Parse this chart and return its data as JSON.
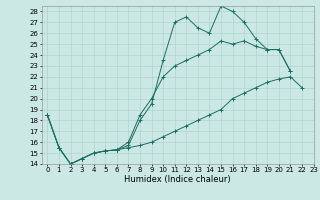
{
  "xlabel": "Humidex (Indice chaleur)",
  "bg_color": "#cce8e4",
  "line_color": "#1a6e64",
  "grid_color": "#b0d4ce",
  "xlim": [
    -0.5,
    23
  ],
  "ylim": [
    14,
    28.5
  ],
  "yticks": [
    14,
    15,
    16,
    17,
    18,
    19,
    20,
    21,
    22,
    23,
    24,
    25,
    26,
    27,
    28
  ],
  "xticks": [
    0,
    1,
    2,
    3,
    4,
    5,
    6,
    7,
    8,
    9,
    10,
    11,
    12,
    13,
    14,
    15,
    16,
    17,
    18,
    19,
    20,
    21,
    22,
    23
  ],
  "line1_x": [
    0,
    1,
    2,
    3,
    4,
    5,
    6,
    7,
    8,
    9,
    10,
    11,
    12,
    13,
    14,
    15,
    16,
    17,
    18,
    19,
    20,
    21
  ],
  "line1_y": [
    18.5,
    15.5,
    14.0,
    14.5,
    15.0,
    15.2,
    15.3,
    15.7,
    18.0,
    19.5,
    23.5,
    27.0,
    27.5,
    26.5,
    26.0,
    28.5,
    28.0,
    27.0,
    25.5,
    24.5,
    24.5,
    22.5
  ],
  "line2_x": [
    0,
    1,
    2,
    3,
    4,
    5,
    6,
    7,
    8,
    9,
    10,
    11,
    12,
    13,
    14,
    15,
    16,
    17,
    18,
    19,
    20,
    21
  ],
  "line2_y": [
    18.5,
    15.5,
    14.0,
    14.5,
    15.0,
    15.2,
    15.3,
    16.0,
    18.5,
    20.0,
    22.0,
    23.0,
    23.5,
    24.0,
    24.5,
    25.3,
    25.0,
    25.3,
    24.8,
    24.5,
    24.5,
    22.5
  ],
  "line3_x": [
    0,
    1,
    2,
    3,
    4,
    5,
    6,
    7,
    8,
    9,
    10,
    11,
    12,
    13,
    14,
    15,
    16,
    17,
    18,
    19,
    20,
    21,
    22
  ],
  "line3_y": [
    18.5,
    15.5,
    14.0,
    14.5,
    15.0,
    15.2,
    15.3,
    15.5,
    15.7,
    16.0,
    16.5,
    17.0,
    17.5,
    18.0,
    18.5,
    19.0,
    20.0,
    20.5,
    21.0,
    21.5,
    21.8,
    22.0,
    21.0
  ],
  "xlabel_fontsize": 6,
  "tick_fontsize": 5
}
